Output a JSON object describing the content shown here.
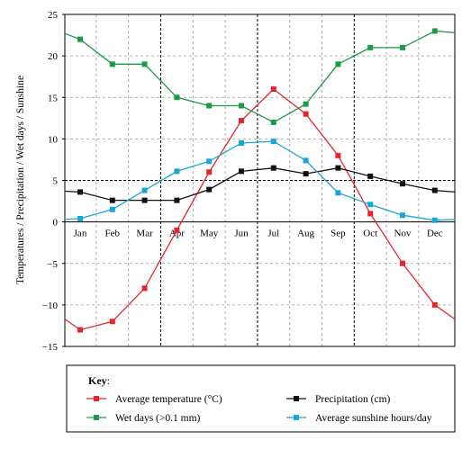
{
  "chart_data": {
    "type": "line",
    "title": "",
    "xlabel": "",
    "ylabel": "Temperatures / Precipitation / Wet days / Sunshine",
    "ylim": [
      -15,
      25
    ],
    "yticks": [
      25,
      20,
      15,
      10,
      5,
      0,
      -5,
      -10,
      -15
    ],
    "categories": [
      "Jan",
      "Feb",
      "Mar",
      "Apr",
      "May",
      "Jun",
      "Jul",
      "Aug",
      "Sep",
      "Oct",
      "Nov",
      "Dec"
    ],
    "grid": true,
    "key_title": "Key",
    "legend_placement": "bottom",
    "series": [
      {
        "name": "Average temperature (°C)",
        "color": "#e3262c",
        "values": [
          -13,
          -12,
          -8,
          -1,
          6,
          12.2,
          16,
          13,
          8,
          1,
          -5,
          -10
        ],
        "edge_left": -11.7,
        "edge_right": -11.7
      },
      {
        "name": "Wet days (>0.1 mm)",
        "color": "#1a9a4a",
        "values": [
          22,
          19,
          19,
          15,
          14,
          14,
          12,
          14.2,
          19,
          21,
          21,
          23
        ],
        "edge_left": 22.7,
        "edge_right": 22.8
      },
      {
        "name": "Precipitation (cm)",
        "color": "#111111",
        "values": [
          3.6,
          2.6,
          2.6,
          2.6,
          3.9,
          6.1,
          6.5,
          5.8,
          6.5,
          5.5,
          4.6,
          3.8
        ],
        "edge_left": 3.7,
        "edge_right": 3.6
      },
      {
        "name": "Average sunshine hours/day",
        "color": "#1aa7d8",
        "values": [
          0.4,
          1.5,
          3.8,
          6.1,
          7.3,
          9.5,
          9.7,
          7.4,
          3.5,
          2.1,
          0.8,
          0.2
        ],
        "edge_left": 0.3,
        "edge_right": 0.3
      }
    ]
  }
}
